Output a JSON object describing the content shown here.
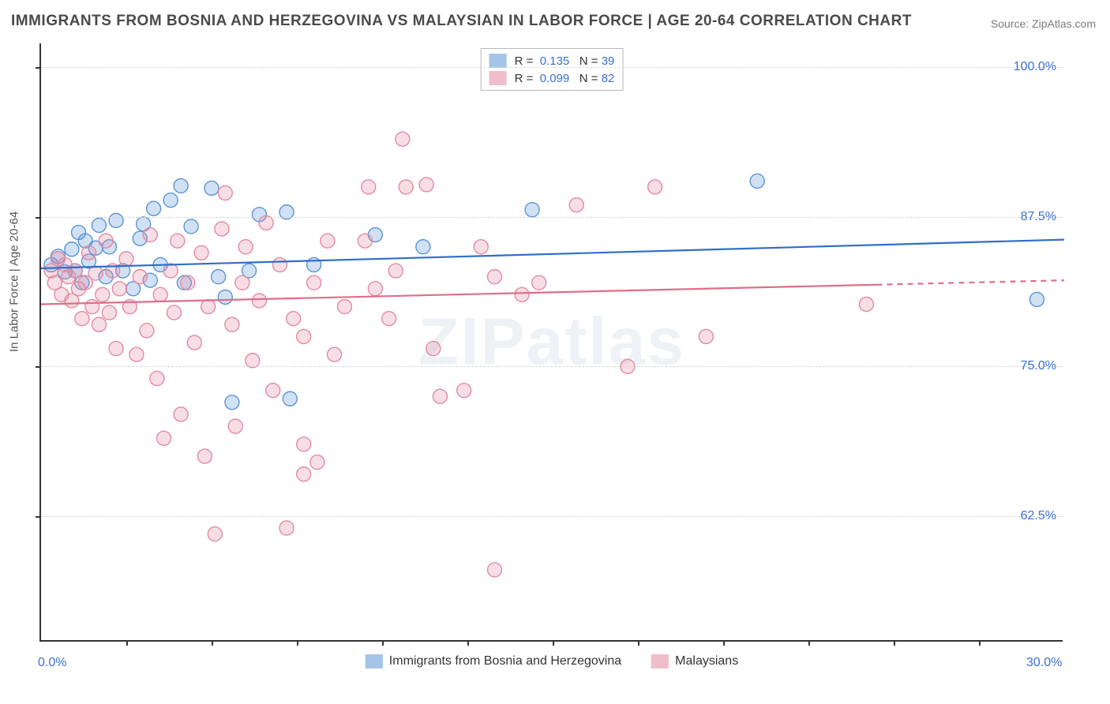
{
  "title": "IMMIGRANTS FROM BOSNIA AND HERZEGOVINA VS MALAYSIAN IN LABOR FORCE | AGE 20-64 CORRELATION CHART",
  "source": "Source: ZipAtlas.com",
  "watermark": "ZIPatlas",
  "chart": {
    "type": "scatter",
    "background_color": "#ffffff",
    "axis_color": "#333333",
    "grid_color": "#d5d5d5",
    "label_color": "#3b6fd6",
    "axis_title_color": "#555555",
    "y_axis_title": "In Labor Force | Age 20-64",
    "xlim": [
      0,
      30
    ],
    "ylim": [
      52,
      102
    ],
    "x_ticks_minor": [
      2.5,
      5,
      7.5,
      10,
      12.5,
      15,
      17.5,
      20,
      22.5,
      25,
      27.5
    ],
    "x_tick_labels": [
      {
        "x": 0,
        "text": "0.0%"
      },
      {
        "x": 30,
        "text": "30.0%"
      }
    ],
    "y_gridlines": [
      62.5,
      75.0,
      87.5,
      100.0
    ],
    "y_tick_labels": [
      {
        "y": 62.5,
        "text": "62.5%"
      },
      {
        "y": 75.0,
        "text": "75.0%"
      },
      {
        "y": 87.5,
        "text": "87.5%"
      },
      {
        "y": 100.0,
        "text": "100.0%"
      }
    ],
    "label_fontsize": 16,
    "title_fontsize": 19,
    "marker_radius": 9,
    "marker_stroke_width": 1.4,
    "marker_fill_opacity": 0.28,
    "line_width": 2.2,
    "series": [
      {
        "name": "Immigrants from Bosnia and Herzegovina",
        "color": "#5a94d6",
        "line_color": "#2f6fc7",
        "R": "0.135",
        "N": "39",
        "trend": {
          "x1": 0,
          "y1": 83.2,
          "x2": 30,
          "y2": 85.6,
          "dash_after_x": null
        },
        "points": [
          [
            0.3,
            83.5
          ],
          [
            0.5,
            84.2
          ],
          [
            0.7,
            82.9
          ],
          [
            0.9,
            84.8
          ],
          [
            1.0,
            83.0
          ],
          [
            1.1,
            86.2
          ],
          [
            1.2,
            82.0
          ],
          [
            1.3,
            85.5
          ],
          [
            1.4,
            83.8
          ],
          [
            1.6,
            84.9
          ],
          [
            1.7,
            86.8
          ],
          [
            1.9,
            82.5
          ],
          [
            2.0,
            85.0
          ],
          [
            2.2,
            87.2
          ],
          [
            2.4,
            83.0
          ],
          [
            2.7,
            81.5
          ],
          [
            2.9,
            85.7
          ],
          [
            3.0,
            86.9
          ],
          [
            3.2,
            82.2
          ],
          [
            3.3,
            88.2
          ],
          [
            3.5,
            83.5
          ],
          [
            3.8,
            88.9
          ],
          [
            4.1,
            90.1
          ],
          [
            4.2,
            82.0
          ],
          [
            4.4,
            86.7
          ],
          [
            5.0,
            89.9
          ],
          [
            5.2,
            82.5
          ],
          [
            5.4,
            80.8
          ],
          [
            5.6,
            72.0
          ],
          [
            6.1,
            83.0
          ],
          [
            6.4,
            87.7
          ],
          [
            7.2,
            87.9
          ],
          [
            7.3,
            72.3
          ],
          [
            8.0,
            83.5
          ],
          [
            9.8,
            86.0
          ],
          [
            11.2,
            85.0
          ],
          [
            14.4,
            88.1
          ],
          [
            21.0,
            90.5
          ],
          [
            29.2,
            80.6
          ]
        ]
      },
      {
        "name": "Malaysians",
        "color": "#e48aa0",
        "line_color": "#de6e8a",
        "R": "0.099",
        "N": "82",
        "trend": {
          "x1": 0,
          "y1": 80.2,
          "x2": 30,
          "y2": 82.2,
          "dash_after_x": 24.5
        },
        "points": [
          [
            0.3,
            83.0
          ],
          [
            0.4,
            82.0
          ],
          [
            0.5,
            84.0
          ],
          [
            0.6,
            81.0
          ],
          [
            0.7,
            83.5
          ],
          [
            0.8,
            82.5
          ],
          [
            0.9,
            80.5
          ],
          [
            1.0,
            83.0
          ],
          [
            1.1,
            81.5
          ],
          [
            1.2,
            79.0
          ],
          [
            1.3,
            82.0
          ],
          [
            1.4,
            84.5
          ],
          [
            1.5,
            80.0
          ],
          [
            1.6,
            82.8
          ],
          [
            1.7,
            78.5
          ],
          [
            1.8,
            81.0
          ],
          [
            1.9,
            85.5
          ],
          [
            2.0,
            79.5
          ],
          [
            2.1,
            83.0
          ],
          [
            2.2,
            76.5
          ],
          [
            2.3,
            81.5
          ],
          [
            2.5,
            84.0
          ],
          [
            2.6,
            80.0
          ],
          [
            2.8,
            76.0
          ],
          [
            2.9,
            82.5
          ],
          [
            3.1,
            78.0
          ],
          [
            3.2,
            86.0
          ],
          [
            3.4,
            74.0
          ],
          [
            3.5,
            81.0
          ],
          [
            3.6,
            69.0
          ],
          [
            3.8,
            83.0
          ],
          [
            3.9,
            79.5
          ],
          [
            4.0,
            85.5
          ],
          [
            4.1,
            71.0
          ],
          [
            4.3,
            82.0
          ],
          [
            4.5,
            77.0
          ],
          [
            4.7,
            84.5
          ],
          [
            4.8,
            67.5
          ],
          [
            4.9,
            80.0
          ],
          [
            5.1,
            61.0
          ],
          [
            5.3,
            86.5
          ],
          [
            5.4,
            89.5
          ],
          [
            5.6,
            78.5
          ],
          [
            5.7,
            70.0
          ],
          [
            5.9,
            82.0
          ],
          [
            6.0,
            85.0
          ],
          [
            6.2,
            75.5
          ],
          [
            6.4,
            80.5
          ],
          [
            6.6,
            87.0
          ],
          [
            6.8,
            73.0
          ],
          [
            7.0,
            83.5
          ],
          [
            7.2,
            61.5
          ],
          [
            7.4,
            79.0
          ],
          [
            7.7,
            66.0
          ],
          [
            7.7,
            68.5
          ],
          [
            7.7,
            77.5
          ],
          [
            8.0,
            82.0
          ],
          [
            8.1,
            67.0
          ],
          [
            8.4,
            85.5
          ],
          [
            8.6,
            76.0
          ],
          [
            8.9,
            80.0
          ],
          [
            9.5,
            85.5
          ],
          [
            9.6,
            90.0
          ],
          [
            9.8,
            81.5
          ],
          [
            10.2,
            79.0
          ],
          [
            10.4,
            83.0
          ],
          [
            10.6,
            94.0
          ],
          [
            10.7,
            90.0
          ],
          [
            11.3,
            90.2
          ],
          [
            11.5,
            76.5
          ],
          [
            11.7,
            72.5
          ],
          [
            12.4,
            73.0
          ],
          [
            12.9,
            85.0
          ],
          [
            13.3,
            58.0
          ],
          [
            13.3,
            82.5
          ],
          [
            14.1,
            81.0
          ],
          [
            14.6,
            82.0
          ],
          [
            15.7,
            88.5
          ],
          [
            17.2,
            75.0
          ],
          [
            18.0,
            90.0
          ],
          [
            19.5,
            77.5
          ],
          [
            24.2,
            80.2
          ]
        ]
      }
    ],
    "legend_bottom": [
      {
        "label": "Immigrants from Bosnia and Herzegovina",
        "series": 0
      },
      {
        "label": "Malaysians",
        "series": 1
      }
    ]
  }
}
